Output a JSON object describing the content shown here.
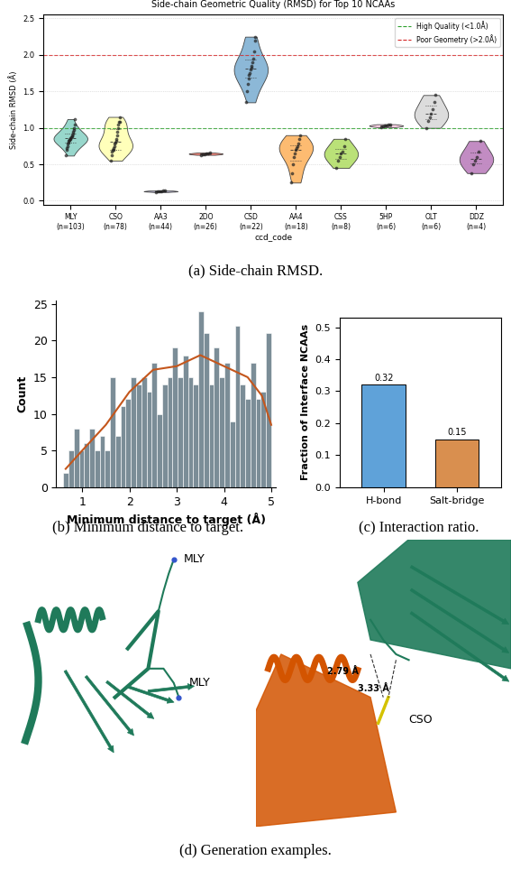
{
  "chart_data": [
    {
      "type": "violin",
      "title": "Side-chain Geometric Quality (RMSD) for Top 10 NCAAs",
      "x_label": "ccd_code",
      "y_label": "Side-chain RMSD (Å)",
      "caption": "(a) Side-chain RMSD.",
      "categories": [
        "MLY\n(n=103)",
        "CSO\n(n=78)",
        "AA3\n(n=44)",
        "2DO\n(n=26)",
        "CSD\n(n=22)",
        "AA4\n(n=18)",
        "CSS\n(n=8)",
        "5HP\n(n=6)",
        "OLT\n(n=6)",
        "DDZ\n(n=4)"
      ],
      "colors": [
        "#8dd3c7",
        "#ffffb3",
        "#bebada",
        "#fb8072",
        "#80b1d3",
        "#fdb462",
        "#b3de69",
        "#fccde5",
        "#d9d9d9",
        "#bc80bd"
      ],
      "values": [
        [
          0.62,
          0.7,
          0.72,
          0.75,
          0.78,
          0.8,
          0.82,
          0.83,
          0.84,
          0.85,
          0.86,
          0.87,
          0.88,
          0.9,
          0.92,
          0.95,
          0.97,
          1.0,
          1.05,
          1.12
        ],
        [
          0.55,
          0.62,
          0.68,
          0.7,
          0.7,
          0.72,
          0.75,
          0.78,
          0.8,
          0.82,
          0.85,
          0.9,
          0.95,
          1.0,
          1.05,
          1.08,
          1.08,
          1.15
        ],
        [
          0.12,
          0.13,
          0.13,
          0.13,
          0.14,
          0.14
        ],
        [
          0.63,
          0.64,
          0.64,
          0.65,
          0.65,
          0.66
        ],
        [
          1.35,
          1.5,
          1.6,
          1.68,
          1.72,
          1.75,
          1.8,
          1.82,
          1.85,
          1.9,
          1.95,
          2.05,
          2.2,
          2.25
        ],
        [
          0.25,
          0.38,
          0.5,
          0.6,
          0.65,
          0.7,
          0.72,
          0.75,
          0.78,
          0.85,
          0.9
        ],
        [
          0.45,
          0.55,
          0.6,
          0.65,
          0.68,
          0.75,
          0.85
        ],
        [
          1.01,
          1.02,
          1.03,
          1.03,
          1.04,
          1.05
        ],
        [
          1.0,
          1.1,
          1.15,
          1.2,
          1.25,
          1.35,
          1.45
        ],
        [
          0.38,
          0.5,
          0.55,
          0.6,
          0.68,
          0.82
        ]
      ],
      "ylim": [
        -0.05,
        2.55
      ],
      "yticks": [
        {
          "value": 0,
          "label": "0.0"
        },
        {
          "value": 0.5,
          "label": "0.5"
        },
        {
          "value": 1,
          "label": "1.0"
        },
        {
          "value": 1.5,
          "label": "1.5"
        },
        {
          "value": 2,
          "label": "2.0"
        },
        {
          "value": 2.5,
          "label": "2.5"
        }
      ],
      "grid": true,
      "legend": "upper right",
      "reference_lines": [
        {
          "name": "High Quality (<1.0Å)",
          "value": 1.0,
          "color": "#2ca02c",
          "line_style": "dashed"
        },
        {
          "name": "Poor Geometry (>2.0Å)",
          "value": 2.0,
          "color": "#d62728",
          "line_style": "dashed"
        }
      ]
    },
    {
      "type": "histogram",
      "x_label": "Minimum distance to target (Å)",
      "y_label": "Count",
      "caption": "(b) Minimum distance to target.",
      "bins": [
        0.6,
        0.71,
        0.82,
        0.93,
        1.04,
        1.15,
        1.26,
        1.37,
        1.48,
        1.59,
        1.7,
        1.81,
        1.92,
        2.03,
        2.14,
        2.25,
        2.36,
        2.47,
        2.58,
        2.69,
        2.8,
        2.91,
        3.02,
        3.13,
        3.24,
        3.35,
        3.46,
        3.57,
        3.68,
        3.79,
        3.9,
        4.01,
        4.12,
        4.23,
        4.34,
        4.45,
        4.56,
        4.67,
        4.78,
        4.89,
        5.0
      ],
      "counts": [
        2,
        5,
        8,
        5,
        6,
        8,
        5,
        7,
        5,
        15,
        7,
        11,
        12,
        15,
        14,
        15,
        13,
        17,
        10,
        14,
        15,
        19,
        15,
        18,
        15,
        14,
        24,
        21,
        14,
        19,
        15,
        17,
        9,
        22,
        14,
        12,
        17,
        12,
        13,
        21
      ],
      "color": "#7b8d97",
      "kde": {
        "x": [
          0.65,
          1.0,
          1.5,
          2.0,
          2.5,
          3.0,
          3.5,
          4.0,
          4.5,
          4.8,
          5.0
        ],
        "values": [
          2.5,
          5.0,
          8.5,
          13.0,
          16.0,
          16.5,
          18.0,
          16.5,
          15.0,
          12.5,
          8.5
        ],
        "color": "#c4561c"
      },
      "xlim": [
        0.45,
        5.1
      ],
      "xticks": [
        1,
        2,
        3,
        4,
        5
      ],
      "ylim": [
        0,
        25.5
      ],
      "yticks": [
        0,
        5,
        10,
        15,
        20,
        25
      ]
    },
    {
      "type": "bar",
      "y_label": "Fraction of Interface NCAAs",
      "caption": "(c) Interaction ratio.",
      "categories": [
        "H-bond",
        "Salt-bridge"
      ],
      "values": [
        0.32,
        0.15
      ],
      "colors": [
        "#5fa2d9",
        "#d98f4f"
      ],
      "data_labels": true,
      "ylim": [
        0,
        0.53
      ],
      "yticks": [
        {
          "value": 0,
          "label": "0.0"
        },
        {
          "value": 0.1,
          "label": "0.1"
        },
        {
          "value": 0.2,
          "label": "0.2"
        },
        {
          "value": 0.3,
          "label": "0.3"
        },
        {
          "value": 0.4,
          "label": "0.4"
        },
        {
          "value": 0.5,
          "label": "0.5"
        }
      ]
    },
    {
      "type": "image",
      "caption": "(d) Generation examples.",
      "annotations": [
        "MLY",
        "MLY",
        "2.79 Å",
        "3.33 Å",
        "CSO"
      ],
      "colors": [
        "#1f7a5a",
        "#d35400"
      ]
    }
  ]
}
